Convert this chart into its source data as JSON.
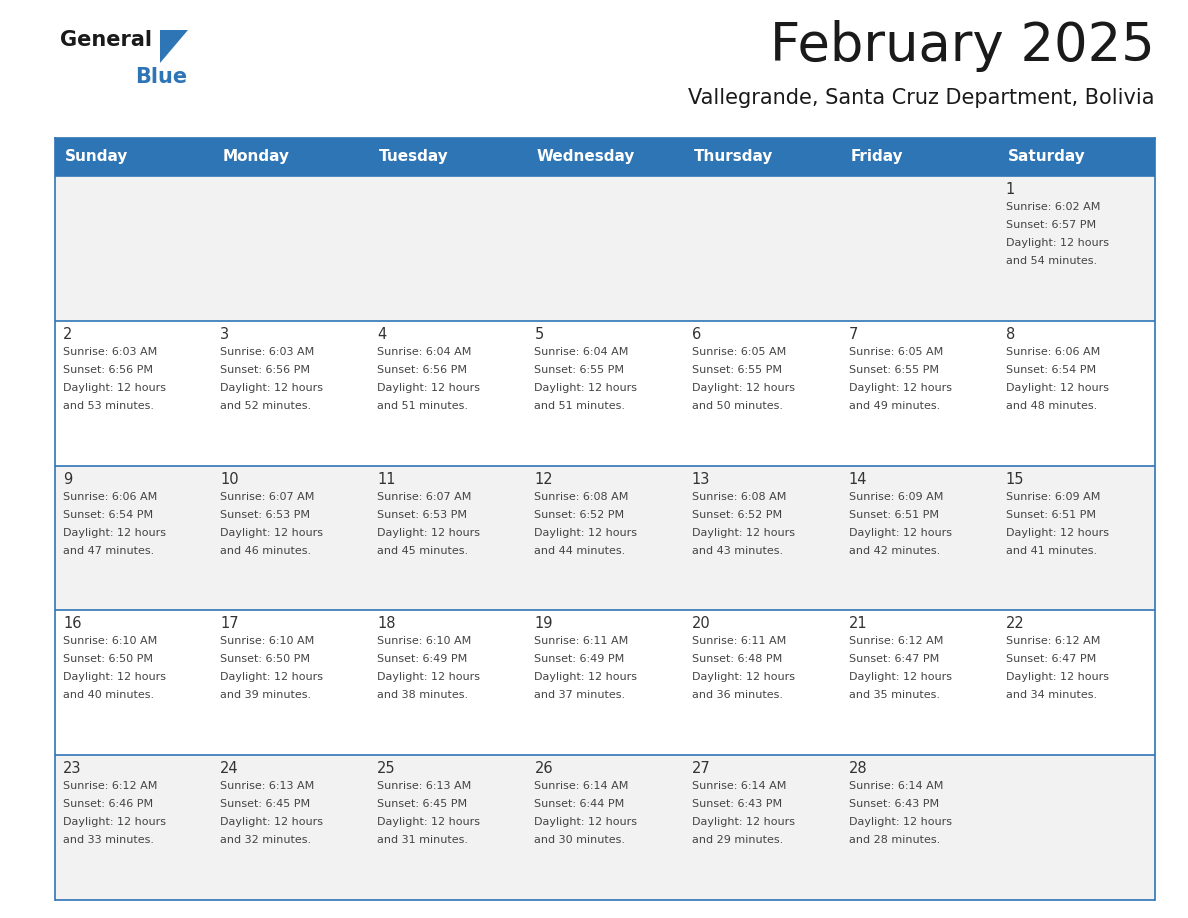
{
  "title": "February 2025",
  "subtitle": "Vallegrande, Santa Cruz Department, Bolivia",
  "header_bg": "#2E75B6",
  "header_text_color": "#FFFFFF",
  "cell_bg_odd": "#F2F2F2",
  "cell_bg_even": "#FFFFFF",
  "day_headers": [
    "Sunday",
    "Monday",
    "Tuesday",
    "Wednesday",
    "Thursday",
    "Friday",
    "Saturday"
  ],
  "grid_line_color": "#2E75B6",
  "date_text_color": "#333333",
  "info_text_color": "#444444",
  "days": [
    {
      "day": 1,
      "col": 6,
      "row": 0,
      "sunrise": "6:02 AM",
      "sunset": "6:57 PM",
      "daylight_hours": 12,
      "daylight_minutes": 54
    },
    {
      "day": 2,
      "col": 0,
      "row": 1,
      "sunrise": "6:03 AM",
      "sunset": "6:56 PM",
      "daylight_hours": 12,
      "daylight_minutes": 53
    },
    {
      "day": 3,
      "col": 1,
      "row": 1,
      "sunrise": "6:03 AM",
      "sunset": "6:56 PM",
      "daylight_hours": 12,
      "daylight_minutes": 52
    },
    {
      "day": 4,
      "col": 2,
      "row": 1,
      "sunrise": "6:04 AM",
      "sunset": "6:56 PM",
      "daylight_hours": 12,
      "daylight_minutes": 51
    },
    {
      "day": 5,
      "col": 3,
      "row": 1,
      "sunrise": "6:04 AM",
      "sunset": "6:55 PM",
      "daylight_hours": 12,
      "daylight_minutes": 51
    },
    {
      "day": 6,
      "col": 4,
      "row": 1,
      "sunrise": "6:05 AM",
      "sunset": "6:55 PM",
      "daylight_hours": 12,
      "daylight_minutes": 50
    },
    {
      "day": 7,
      "col": 5,
      "row": 1,
      "sunrise": "6:05 AM",
      "sunset": "6:55 PM",
      "daylight_hours": 12,
      "daylight_minutes": 49
    },
    {
      "day": 8,
      "col": 6,
      "row": 1,
      "sunrise": "6:06 AM",
      "sunset": "6:54 PM",
      "daylight_hours": 12,
      "daylight_minutes": 48
    },
    {
      "day": 9,
      "col": 0,
      "row": 2,
      "sunrise": "6:06 AM",
      "sunset": "6:54 PM",
      "daylight_hours": 12,
      "daylight_minutes": 47
    },
    {
      "day": 10,
      "col": 1,
      "row": 2,
      "sunrise": "6:07 AM",
      "sunset": "6:53 PM",
      "daylight_hours": 12,
      "daylight_minutes": 46
    },
    {
      "day": 11,
      "col": 2,
      "row": 2,
      "sunrise": "6:07 AM",
      "sunset": "6:53 PM",
      "daylight_hours": 12,
      "daylight_minutes": 45
    },
    {
      "day": 12,
      "col": 3,
      "row": 2,
      "sunrise": "6:08 AM",
      "sunset": "6:52 PM",
      "daylight_hours": 12,
      "daylight_minutes": 44
    },
    {
      "day": 13,
      "col": 4,
      "row": 2,
      "sunrise": "6:08 AM",
      "sunset": "6:52 PM",
      "daylight_hours": 12,
      "daylight_minutes": 43
    },
    {
      "day": 14,
      "col": 5,
      "row": 2,
      "sunrise": "6:09 AM",
      "sunset": "6:51 PM",
      "daylight_hours": 12,
      "daylight_minutes": 42
    },
    {
      "day": 15,
      "col": 6,
      "row": 2,
      "sunrise": "6:09 AM",
      "sunset": "6:51 PM",
      "daylight_hours": 12,
      "daylight_minutes": 41
    },
    {
      "day": 16,
      "col": 0,
      "row": 3,
      "sunrise": "6:10 AM",
      "sunset": "6:50 PM",
      "daylight_hours": 12,
      "daylight_minutes": 40
    },
    {
      "day": 17,
      "col": 1,
      "row": 3,
      "sunrise": "6:10 AM",
      "sunset": "6:50 PM",
      "daylight_hours": 12,
      "daylight_minutes": 39
    },
    {
      "day": 18,
      "col": 2,
      "row": 3,
      "sunrise": "6:10 AM",
      "sunset": "6:49 PM",
      "daylight_hours": 12,
      "daylight_minutes": 38
    },
    {
      "day": 19,
      "col": 3,
      "row": 3,
      "sunrise": "6:11 AM",
      "sunset": "6:49 PM",
      "daylight_hours": 12,
      "daylight_minutes": 37
    },
    {
      "day": 20,
      "col": 4,
      "row": 3,
      "sunrise": "6:11 AM",
      "sunset": "6:48 PM",
      "daylight_hours": 12,
      "daylight_minutes": 36
    },
    {
      "day": 21,
      "col": 5,
      "row": 3,
      "sunrise": "6:12 AM",
      "sunset": "6:47 PM",
      "daylight_hours": 12,
      "daylight_minutes": 35
    },
    {
      "day": 22,
      "col": 6,
      "row": 3,
      "sunrise": "6:12 AM",
      "sunset": "6:47 PM",
      "daylight_hours": 12,
      "daylight_minutes": 34
    },
    {
      "day": 23,
      "col": 0,
      "row": 4,
      "sunrise": "6:12 AM",
      "sunset": "6:46 PM",
      "daylight_hours": 12,
      "daylight_minutes": 33
    },
    {
      "day": 24,
      "col": 1,
      "row": 4,
      "sunrise": "6:13 AM",
      "sunset": "6:45 PM",
      "daylight_hours": 12,
      "daylight_minutes": 32
    },
    {
      "day": 25,
      "col": 2,
      "row": 4,
      "sunrise": "6:13 AM",
      "sunset": "6:45 PM",
      "daylight_hours": 12,
      "daylight_minutes": 31
    },
    {
      "day": 26,
      "col": 3,
      "row": 4,
      "sunrise": "6:14 AM",
      "sunset": "6:44 PM",
      "daylight_hours": 12,
      "daylight_minutes": 30
    },
    {
      "day": 27,
      "col": 4,
      "row": 4,
      "sunrise": "6:14 AM",
      "sunset": "6:43 PM",
      "daylight_hours": 12,
      "daylight_minutes": 29
    },
    {
      "day": 28,
      "col": 5,
      "row": 4,
      "sunrise": "6:14 AM",
      "sunset": "6:43 PM",
      "daylight_hours": 12,
      "daylight_minutes": 28
    }
  ]
}
